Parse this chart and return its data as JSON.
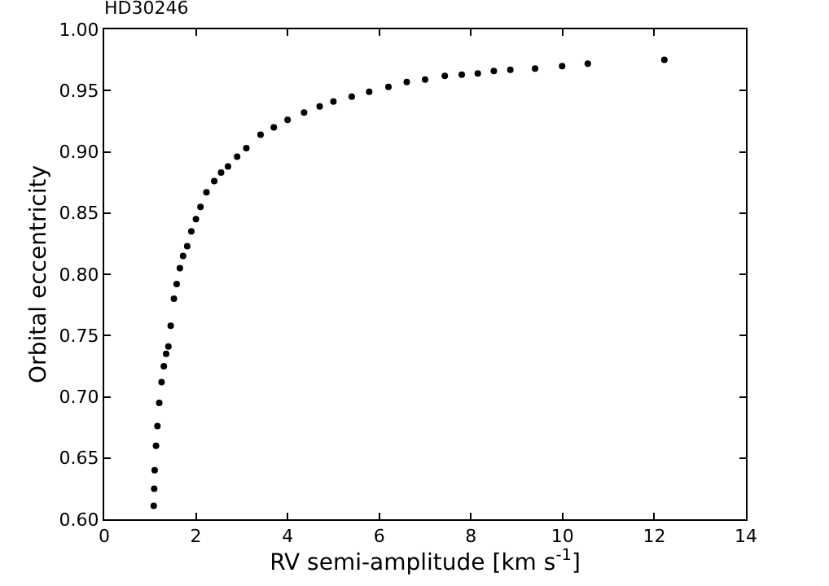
{
  "chart_data": {
    "type": "scatter",
    "title": "HD30246",
    "xlabel": "RV semi-amplitude [km s$^{-1}$]",
    "ylabel": "Orbital eccentricity",
    "x": [
      1.08,
      1.09,
      1.1,
      1.13,
      1.16,
      1.2,
      1.25,
      1.3,
      1.35,
      1.4,
      1.45,
      1.52,
      1.58,
      1.65,
      1.72,
      1.81,
      1.9,
      2.0,
      2.1,
      2.23,
      2.4,
      2.55,
      2.7,
      2.9,
      3.1,
      3.41,
      3.7,
      4.0,
      4.36,
      4.7,
      5.0,
      5.4,
      5.78,
      6.2,
      6.6,
      7.0,
      7.43,
      7.8,
      8.15,
      8.5,
      8.86,
      9.4,
      9.99,
      10.55,
      12.22
    ],
    "series": [
      {
        "color": "#000000",
        "values": [
          0.611,
          0.625,
          0.64,
          0.66,
          0.676,
          0.695,
          0.712,
          0.725,
          0.735,
          0.741,
          0.758,
          0.78,
          0.792,
          0.805,
          0.815,
          0.823,
          0.835,
          0.845,
          0.855,
          0.867,
          0.876,
          0.883,
          0.888,
          0.896,
          0.903,
          0.914,
          0.92,
          0.926,
          0.932,
          0.937,
          0.941,
          0.945,
          0.949,
          0.953,
          0.957,
          0.959,
          0.962,
          0.963,
          0.964,
          0.966,
          0.967,
          0.968,
          0.97,
          0.972,
          0.975
        ]
      }
    ],
    "xlim": [
      0,
      14
    ],
    "xticks": [
      0,
      2,
      4,
      6,
      8,
      10,
      12,
      14
    ],
    "ylim": [
      0.6,
      1.0
    ],
    "yticks": [
      {
        "value": 0.6,
        "label": "0.60"
      },
      {
        "value": 0.65,
        "label": "0.65"
      },
      {
        "value": 0.7,
        "label": "0.70"
      },
      {
        "value": 0.75,
        "label": "0.75"
      },
      {
        "value": 0.8,
        "label": "0.80"
      },
      {
        "value": 0.85,
        "label": "0.85"
      },
      {
        "value": 0.9,
        "label": "0.90"
      },
      {
        "value": 0.95,
        "label": "0.95"
      },
      {
        "value": 1.0,
        "label": "1.00"
      }
    ],
    "marker": "circle"
  }
}
